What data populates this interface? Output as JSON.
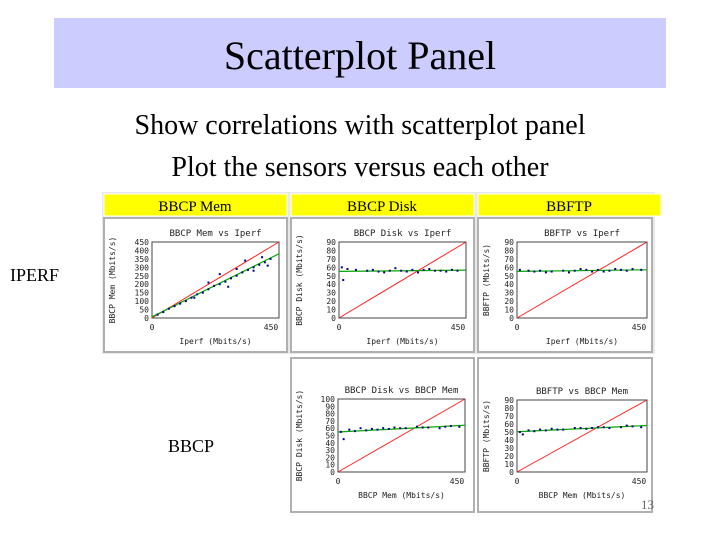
{
  "title": "Scatterplot Panel",
  "bullets": [
    "Show correlations with scatterplot panel",
    "Plot the sensors versus each other"
  ],
  "row_labels": {
    "iperf": "IPERF",
    "bbcp": "BBCP"
  },
  "column_headers": [
    "BBCP Mem",
    "BBCP Disk",
    "BBFTP"
  ],
  "page_number": "13",
  "colors": {
    "title_bg": "#ccccff",
    "header_bg": "#ffff00",
    "points": "#000088",
    "fit_line": "#00aa00",
    "identity_line": "#ff2222",
    "plot_frame": "#b0b0b0",
    "panel_bg": "#e8e8e8"
  },
  "chart_data": [
    {
      "type": "scatter",
      "title": "BBCP Mem vs Iperf",
      "xlabel": "Iperf (Mbits/s)",
      "ylabel": "BBCP Mem (Mbits/s)",
      "xticks": [
        "0",
        "450"
      ],
      "yticks": [
        "450",
        "400",
        "350",
        "300",
        "250",
        "200",
        "150",
        "100",
        "50",
        "0"
      ],
      "xlim": [
        0,
        450
      ],
      "ylim": [
        0,
        450
      ],
      "x": [
        20,
        40,
        60,
        80,
        100,
        120,
        140,
        160,
        180,
        200,
        220,
        240,
        260,
        280,
        300,
        320,
        340,
        360,
        380,
        400,
        420,
        240,
        300,
        330,
        360,
        390,
        410,
        270,
        200,
        150
      ],
      "y": [
        20,
        35,
        55,
        70,
        85,
        100,
        120,
        140,
        150,
        170,
        190,
        200,
        215,
        235,
        250,
        270,
        285,
        300,
        315,
        330,
        350,
        260,
        290,
        340,
        280,
        360,
        310,
        185,
        210,
        120
      ]
    },
    {
      "type": "scatter",
      "title": "BBCP Disk vs Iperf",
      "xlabel": "Iperf (Mbits/s)",
      "ylabel": "BBCP Disk (Mbits/s)",
      "xticks": [
        "0",
        "450"
      ],
      "yticks": [
        "90",
        "80",
        "70",
        "60",
        "50",
        "40",
        "30",
        "20",
        "10",
        "0"
      ],
      "xlim": [
        0,
        450
      ],
      "ylim": [
        0,
        90
      ],
      "x": [
        10,
        30,
        60,
        100,
        140,
        180,
        220,
        260,
        300,
        340,
        380,
        420,
        160,
        240,
        320,
        400,
        200,
        280,
        120,
        360,
        15
      ],
      "y": [
        60,
        58,
        57,
        56,
        55,
        56,
        56,
        57,
        57,
        56,
        55,
        56,
        54,
        55,
        58,
        57,
        59,
        54,
        57,
        56,
        45
      ]
    },
    {
      "type": "scatter",
      "title": "BBFTP vs Iperf",
      "xlabel": "Iperf (Mbits/s)",
      "ylabel": "BBFTP (Mbits/s)",
      "xticks": [
        "0",
        "450"
      ],
      "yticks": [
        "90",
        "80",
        "70",
        "60",
        "50",
        "40",
        "30",
        "20",
        "10",
        "0"
      ],
      "xlim": [
        0,
        450
      ],
      "ylim": [
        0,
        90
      ],
      "x": [
        10,
        40,
        80,
        120,
        160,
        200,
        240,
        280,
        320,
        360,
        400,
        430,
        180,
        260,
        340,
        100,
        220,
        300,
        380,
        60
      ],
      "y": [
        57,
        56,
        56,
        55,
        56,
        56,
        57,
        57,
        56,
        57,
        58,
        57,
        54,
        55,
        58,
        54,
        58,
        55,
        56,
        55
      ]
    },
    {
      "type": "scatter",
      "title": "BBCP Disk vs BBCP Mem",
      "xlabel": "BBCP Mem (Mbits/s)",
      "ylabel": "BBCP Disk (Mbits/s)",
      "xticks": [
        "0",
        "450"
      ],
      "yticks": [
        "100",
        "90",
        "80",
        "70",
        "60",
        "50",
        "40",
        "30",
        "20",
        "10",
        "0"
      ],
      "xlim": [
        0,
        450
      ],
      "ylim": [
        0,
        100
      ],
      "x": [
        10,
        40,
        80,
        120,
        160,
        200,
        240,
        280,
        320,
        360,
        400,
        430,
        60,
        140,
        220,
        300,
        380,
        20,
        100,
        180
      ],
      "y": [
        55,
        58,
        60,
        59,
        60,
        61,
        60,
        62,
        61,
        60,
        63,
        62,
        56,
        58,
        60,
        61,
        62,
        45,
        57,
        59
      ]
    },
    {
      "type": "scatter",
      "title": "BBFTP vs BBCP Mem",
      "xlabel": "BBCP Mem (Mbits/s)",
      "ylabel": "BBFTP (Mbits/s)",
      "xticks": [
        "0",
        "450"
      ],
      "yticks": [
        "90",
        "80",
        "70",
        "60",
        "50",
        "40",
        "30",
        "20",
        "10",
        "0"
      ],
      "xlim": [
        0,
        450
      ],
      "ylim": [
        0,
        90
      ],
      "x": [
        10,
        40,
        80,
        120,
        160,
        200,
        240,
        280,
        320,
        360,
        400,
        430,
        60,
        140,
        220,
        300,
        380,
        20,
        100,
        260
      ],
      "y": [
        50,
        52,
        53,
        54,
        53,
        55,
        54,
        56,
        55,
        56,
        57,
        56,
        51,
        53,
        55,
        56,
        58,
        47,
        52,
        55
      ]
    }
  ]
}
